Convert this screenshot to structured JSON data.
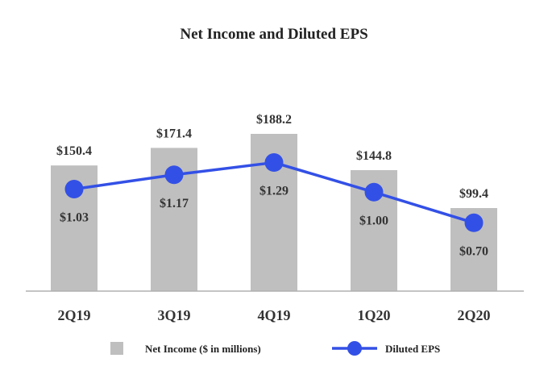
{
  "chart_data": {
    "type": "bar",
    "title": "Net Income and Diluted EPS",
    "categories": [
      "2Q19",
      "3Q19",
      "4Q19",
      "1Q20",
      "2Q20"
    ],
    "series": [
      {
        "name": "Net Income ($ in millions)",
        "kind": "bar",
        "values": [
          150.4,
          171.4,
          188.2,
          144.8,
          99.4
        ],
        "labels": [
          "$150.4",
          "$171.4",
          "$188.2",
          "$144.8",
          "$99.4"
        ],
        "color": "#bfbfbf"
      },
      {
        "name": "Diluted EPS",
        "kind": "line",
        "values": [
          1.03,
          1.17,
          1.29,
          1.0,
          0.7
        ],
        "labels": [
          "$1.03",
          "$1.17",
          "$1.29",
          "$1.00",
          "$0.70"
        ],
        "color": "#3350e6"
      }
    ],
    "xlabel": "",
    "ylabel": "",
    "ylim": [
      0,
      200
    ],
    "y2lim": [
      0,
      1.6
    ],
    "grid": false,
    "legend_position": "bottom"
  }
}
